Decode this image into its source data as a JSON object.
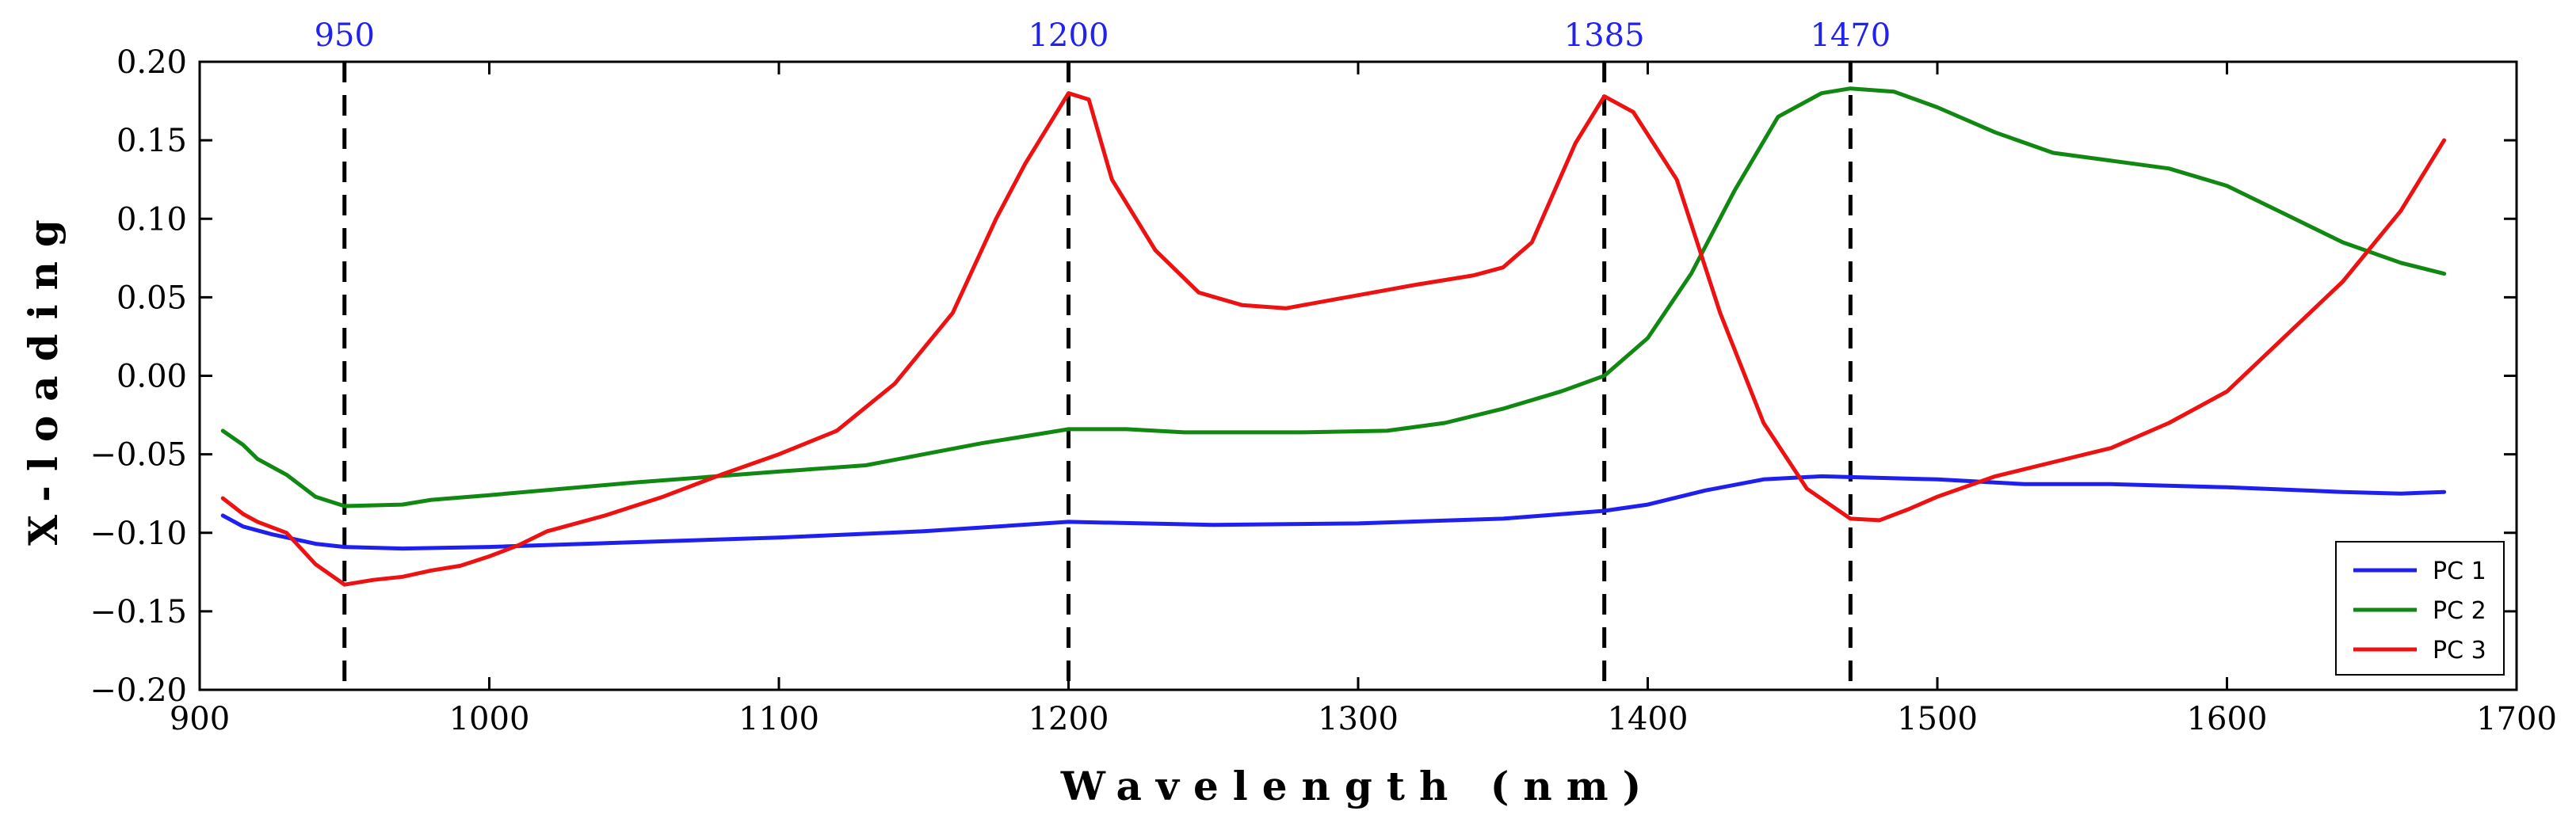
{
  "chart_data": {
    "type": "line",
    "title": "",
    "xlabel": "Wavelength (nm)",
    "ylabel": "X-loading",
    "xlim": [
      900,
      1700
    ],
    "ylim": [
      -0.2,
      0.2
    ],
    "x_ticks": [
      900,
      1000,
      1100,
      1200,
      1300,
      1400,
      1500,
      1600,
      1700
    ],
    "y_ticks": [
      -0.2,
      -0.15,
      -0.1,
      -0.05,
      0.0,
      0.05,
      0.1,
      0.15,
      0.2
    ],
    "x_tick_labels": [
      "900",
      "1000",
      "1100",
      "1200",
      "1300",
      "1400",
      "1500",
      "1600",
      "1700"
    ],
    "y_tick_labels": [
      "−0.20",
      "−0.15",
      "−0.10",
      "−0.05",
      "0.00",
      "0.05",
      "0.10",
      "0.15",
      "0.20"
    ],
    "grid": false,
    "legend_position": "bottom-right",
    "vertical_lines": [
      {
        "x": 950,
        "label": "950"
      },
      {
        "x": 1200,
        "label": "1200"
      },
      {
        "x": 1385,
        "label": "1385"
      },
      {
        "x": 1470,
        "label": "1470"
      }
    ],
    "series": [
      {
        "name": "PC 1",
        "color": "#1f1ff0",
        "points": [
          [
            908,
            -0.089
          ],
          [
            915,
            -0.096
          ],
          [
            925,
            -0.101
          ],
          [
            940,
            -0.107
          ],
          [
            950,
            -0.109
          ],
          [
            970,
            -0.11
          ],
          [
            1000,
            -0.109
          ],
          [
            1050,
            -0.106
          ],
          [
            1100,
            -0.103
          ],
          [
            1150,
            -0.099
          ],
          [
            1200,
            -0.093
          ],
          [
            1250,
            -0.095
          ],
          [
            1300,
            -0.094
          ],
          [
            1350,
            -0.091
          ],
          [
            1385,
            -0.086
          ],
          [
            1400,
            -0.082
          ],
          [
            1420,
            -0.073
          ],
          [
            1440,
            -0.066
          ],
          [
            1460,
            -0.064
          ],
          [
            1480,
            -0.065
          ],
          [
            1500,
            -0.066
          ],
          [
            1530,
            -0.069
          ],
          [
            1560,
            -0.069
          ],
          [
            1600,
            -0.071
          ],
          [
            1640,
            -0.074
          ],
          [
            1660,
            -0.075
          ],
          [
            1675,
            -0.074
          ]
        ]
      },
      {
        "name": "PC 2",
        "color": "#118811",
        "points": [
          [
            908,
            -0.035
          ],
          [
            915,
            -0.044
          ],
          [
            920,
            -0.053
          ],
          [
            930,
            -0.063
          ],
          [
            940,
            -0.077
          ],
          [
            950,
            -0.083
          ],
          [
            970,
            -0.082
          ],
          [
            980,
            -0.079
          ],
          [
            1000,
            -0.076
          ],
          [
            1050,
            -0.068
          ],
          [
            1100,
            -0.061
          ],
          [
            1130,
            -0.057
          ],
          [
            1150,
            -0.05
          ],
          [
            1170,
            -0.043
          ],
          [
            1190,
            -0.037
          ],
          [
            1200,
            -0.034
          ],
          [
            1220,
            -0.034
          ],
          [
            1240,
            -0.036
          ],
          [
            1280,
            -0.036
          ],
          [
            1310,
            -0.035
          ],
          [
            1330,
            -0.03
          ],
          [
            1350,
            -0.021
          ],
          [
            1370,
            -0.01
          ],
          [
            1385,
            0.0
          ],
          [
            1400,
            0.024
          ],
          [
            1415,
            0.065
          ],
          [
            1430,
            0.118
          ],
          [
            1445,
            0.165
          ],
          [
            1460,
            0.18
          ],
          [
            1470,
            0.183
          ],
          [
            1485,
            0.181
          ],
          [
            1500,
            0.171
          ],
          [
            1520,
            0.155
          ],
          [
            1540,
            0.142
          ],
          [
            1560,
            0.137
          ],
          [
            1580,
            0.132
          ],
          [
            1600,
            0.121
          ],
          [
            1620,
            0.103
          ],
          [
            1640,
            0.085
          ],
          [
            1660,
            0.072
          ],
          [
            1675,
            0.065
          ]
        ]
      },
      {
        "name": "PC 3",
        "color": "#ee1111",
        "points": [
          [
            908,
            -0.078
          ],
          [
            915,
            -0.088
          ],
          [
            920,
            -0.093
          ],
          [
            930,
            -0.1
          ],
          [
            940,
            -0.12
          ],
          [
            950,
            -0.133
          ],
          [
            960,
            -0.13
          ],
          [
            970,
            -0.128
          ],
          [
            980,
            -0.124
          ],
          [
            990,
            -0.121
          ],
          [
            1000,
            -0.115
          ],
          [
            1010,
            -0.108
          ],
          [
            1020,
            -0.099
          ],
          [
            1040,
            -0.089
          ],
          [
            1060,
            -0.077
          ],
          [
            1080,
            -0.063
          ],
          [
            1100,
            -0.05
          ],
          [
            1120,
            -0.035
          ],
          [
            1140,
            -0.005
          ],
          [
            1160,
            0.04
          ],
          [
            1175,
            0.1
          ],
          [
            1185,
            0.135
          ],
          [
            1195,
            0.165
          ],
          [
            1200,
            0.18
          ],
          [
            1207,
            0.176
          ],
          [
            1215,
            0.125
          ],
          [
            1230,
            0.08
          ],
          [
            1245,
            0.053
          ],
          [
            1260,
            0.045
          ],
          [
            1275,
            0.043
          ],
          [
            1290,
            0.048
          ],
          [
            1305,
            0.053
          ],
          [
            1320,
            0.058
          ],
          [
            1340,
            0.064
          ],
          [
            1350,
            0.069
          ],
          [
            1360,
            0.085
          ],
          [
            1375,
            0.148
          ],
          [
            1385,
            0.178
          ],
          [
            1395,
            0.168
          ],
          [
            1410,
            0.125
          ],
          [
            1425,
            0.04
          ],
          [
            1440,
            -0.03
          ],
          [
            1455,
            -0.072
          ],
          [
            1470,
            -0.091
          ],
          [
            1480,
            -0.092
          ],
          [
            1490,
            -0.085
          ],
          [
            1500,
            -0.077
          ],
          [
            1520,
            -0.064
          ],
          [
            1540,
            -0.055
          ],
          [
            1560,
            -0.046
          ],
          [
            1580,
            -0.03
          ],
          [
            1600,
            -0.01
          ],
          [
            1620,
            0.025
          ],
          [
            1640,
            0.06
          ],
          [
            1660,
            0.105
          ],
          [
            1675,
            0.15
          ]
        ]
      }
    ]
  }
}
